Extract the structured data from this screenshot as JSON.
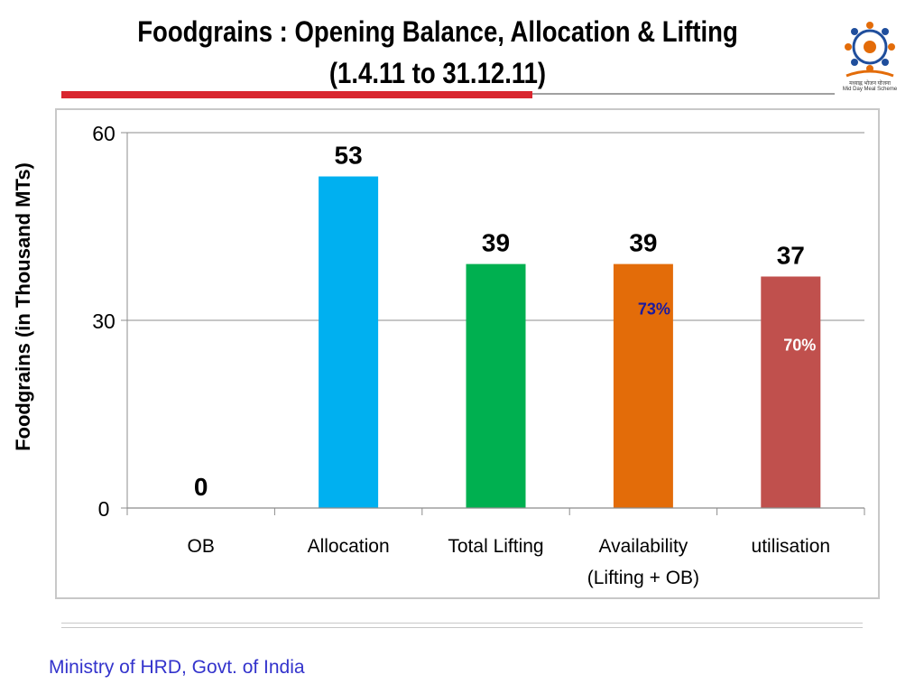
{
  "header": {
    "title_line1": "Foodgrains : Opening Balance, Allocation & Lifting",
    "title_line2": "(1.4.11 to 31.12.11)",
    "logo_text_hindi": "मध्याह्न भोजन योजना",
    "logo_text_en": "Mid Day Meal Scheme"
  },
  "footer": {
    "text": "Ministry of HRD, Govt. of India"
  },
  "colors": {
    "title_rule": "#d9262f",
    "footer_text": "#3333cc",
    "annotation_blue": "#1a1aa0",
    "annotation_white": "#ffffff"
  },
  "chart_data": {
    "type": "bar",
    "title": "",
    "ylabel": "Foodgrains (in Thousand MTs)",
    "xlabel": "",
    "ylim": [
      0,
      60
    ],
    "yticks": [
      0,
      30,
      60
    ],
    "grid": true,
    "legend": "none",
    "categories": [
      [
        "OB"
      ],
      [
        "Allocation"
      ],
      [
        "Total Lifting"
      ],
      [
        "Availability",
        "(Lifting + OB)"
      ],
      [
        "utilisation"
      ]
    ],
    "values": [
      0,
      53,
      39,
      39,
      37
    ],
    "data_labels": [
      "0",
      "53",
      "39",
      "39",
      "37"
    ],
    "bar_colors": [
      "#4f81bd",
      "#00b0f0",
      "#00b050",
      "#e36c09",
      "#c0504d"
    ],
    "annotations": [
      {
        "category": 3,
        "text": "73%",
        "color": "#1a1aa0"
      },
      {
        "category": 4,
        "text": "70%",
        "color": "#ffffff"
      }
    ]
  }
}
